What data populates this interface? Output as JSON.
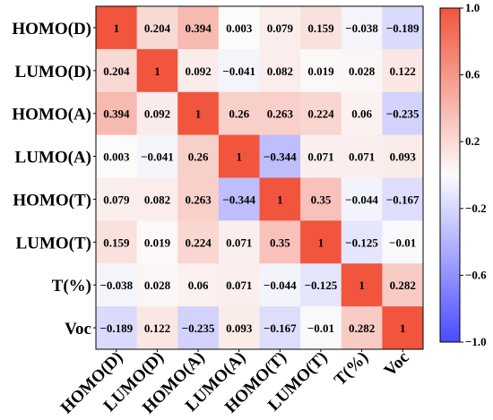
{
  "chart_data": {
    "type": "heatmap",
    "variables": [
      "HOMO(D)",
      "LUMO(D)",
      "HOMO(A)",
      "LUMO(A)",
      "HOMO(T)",
      "LUMO(T)",
      "T(%)",
      "Voc"
    ],
    "matrix": [
      [
        1,
        0.204,
        0.394,
        0.003,
        0.079,
        0.159,
        -0.038,
        -0.189
      ],
      [
        0.204,
        1,
        0.092,
        -0.041,
        0.082,
        0.019,
        0.028,
        0.122
      ],
      [
        0.394,
        0.092,
        1,
        0.26,
        0.263,
        0.224,
        0.06,
        -0.235
      ],
      [
        0.003,
        -0.041,
        0.26,
        1,
        -0.344,
        0.071,
        0.071,
        0.093
      ],
      [
        0.079,
        0.082,
        0.263,
        -0.344,
        1,
        0.35,
        -0.044,
        -0.167
      ],
      [
        0.159,
        0.019,
        0.224,
        0.071,
        0.35,
        1,
        -0.125,
        -0.01
      ],
      [
        -0.038,
        0.028,
        0.06,
        0.071,
        -0.044,
        -0.125,
        1,
        0.282
      ],
      [
        -0.189,
        0.122,
        -0.235,
        0.093,
        -0.167,
        -0.01,
        0.282,
        1
      ]
    ],
    "colorbar": {
      "range": [
        -1.0,
        1.0
      ],
      "ticks": [
        1.0,
        0.6,
        0.2,
        -0.2,
        -0.6,
        -1.0
      ],
      "tick_labels": [
        "1.0",
        "0.6",
        "0.2",
        "−0.2",
        "−0.6",
        "−1.0"
      ],
      "colors": {
        "low": "#4b4bff",
        "mid": "#fbfbfb",
        "high": "#f1553d"
      }
    }
  }
}
